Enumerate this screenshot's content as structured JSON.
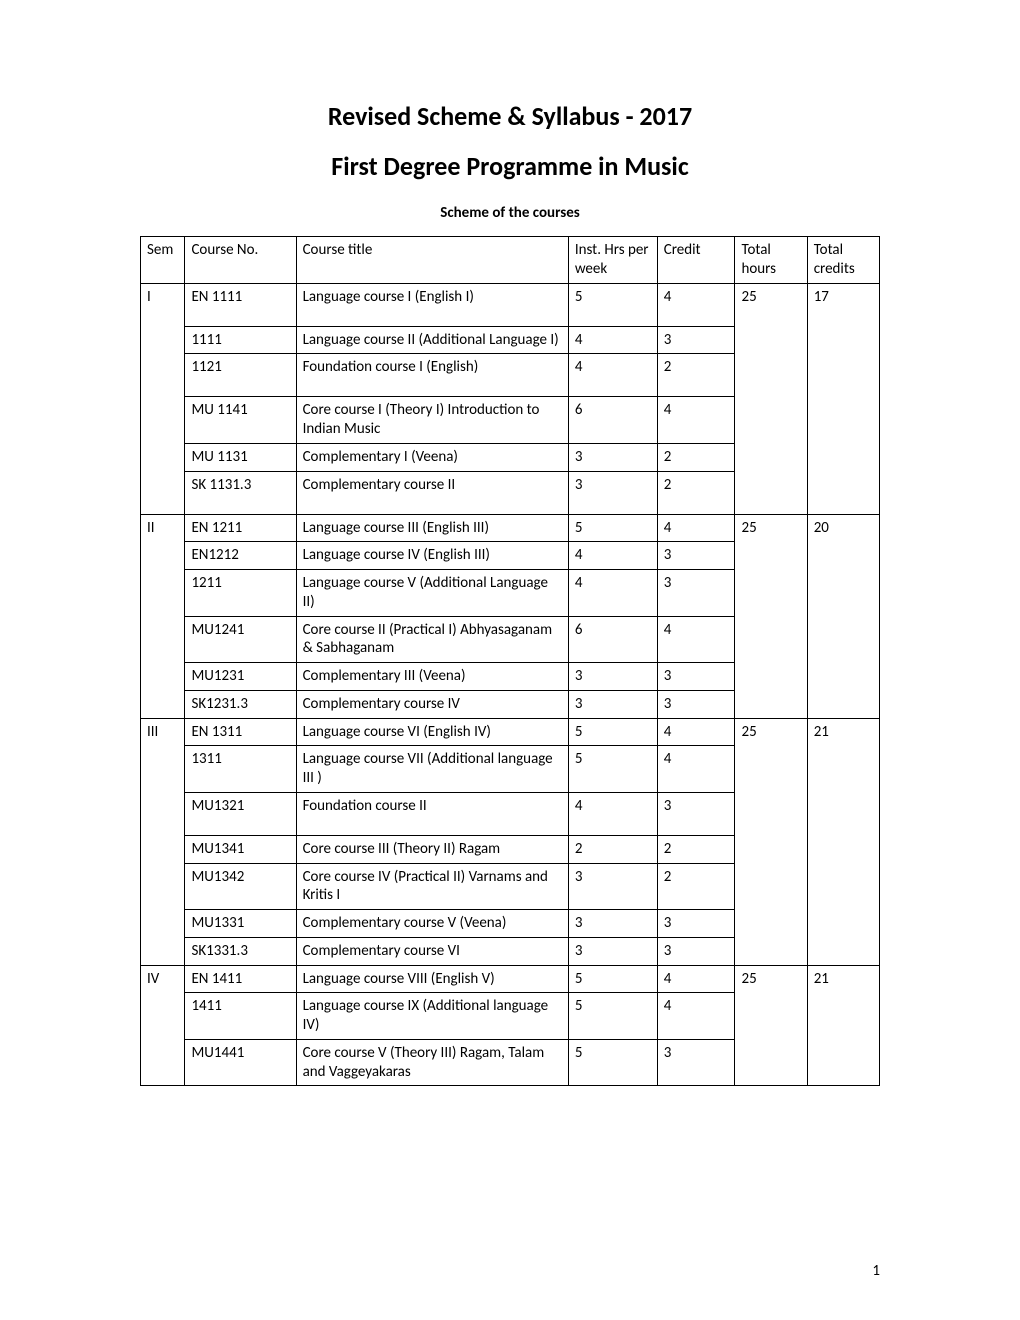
{
  "title": "Revised Scheme & Syllabus - 2017",
  "subtitle": "First Degree Programme in Music",
  "scheme_label": "Scheme of the courses",
  "page_number": "1",
  "columns": {
    "sem": "Sem",
    "course_no": "Course No.",
    "course_title": "Course title",
    "inst_hrs": "Inst. Hrs per week",
    "credit": "Credit",
    "total_hours": "Total hours",
    "total_credits": "Total credits"
  },
  "semesters": [
    {
      "sem": "I",
      "total_hours": "25",
      "total_credits": "17",
      "rows": [
        {
          "no": "EN 1111",
          "title": "Language course I (English I)",
          "hrs": "5",
          "credit": "4",
          "tall": true
        },
        {
          "no": "1111",
          "title": "Language course II (Additional Language I)",
          "hrs": "4",
          "credit": "3"
        },
        {
          "no": "1121",
          "title": "Foundation course I (English)",
          "hrs": "4",
          "credit": "2",
          "tall": true
        },
        {
          "no": "MU 1141",
          "title": "Core course I  (Theory I) Introduction to Indian Music",
          "hrs": "6",
          "credit": "4"
        },
        {
          "no": "MU 1131",
          "title": "Complementary I (Veena)",
          "hrs": "3",
          "credit": "2"
        },
        {
          "no": "SK 1131.3",
          "title": "Complementary course II",
          "hrs": "3",
          "credit": "2",
          "tall": true
        }
      ]
    },
    {
      "sem": "II",
      "total_hours": "25",
      "total_credits": "20",
      "rows": [
        {
          "no": "EN 1211",
          "title": "Language course III (English III)",
          "hrs": "5",
          "credit": "4"
        },
        {
          "no": "EN1212",
          "title": "Language course IV (English III)",
          "hrs": "4",
          "credit": "3"
        },
        {
          "no": "1211",
          "title": "Language course V (Additional Language II)",
          "hrs": "4",
          "credit": "3"
        },
        {
          "no": "MU1241",
          "title": "Core course II (Practical I) Abhyasaganam & Sabhaganam",
          "hrs": "6",
          "credit": "4"
        },
        {
          "no": "MU1231",
          "title": "Complementary III (Veena)",
          "hrs": "3",
          "credit": "3"
        },
        {
          "no": "SK1231.3",
          "title": "Complementary course IV",
          "hrs": "3",
          "credit": "3"
        }
      ]
    },
    {
      "sem": "III",
      "total_hours": "25",
      "total_credits": "21",
      "rows": [
        {
          "no": "EN 1311",
          "title": "Language course VI (English IV)",
          "hrs": "5",
          "credit": "4"
        },
        {
          "no": "1311",
          "title": "Language course VII (Additional language III )",
          "hrs": "5",
          "credit": "4"
        },
        {
          "no": "MU1321",
          "title": "Foundation course II",
          "hrs": "4",
          "credit": "3",
          "tall": true
        },
        {
          "no": "MU1341",
          "title": "Core course III  (Theory II) Ragam",
          "hrs": "2",
          "credit": "2"
        },
        {
          "no": "MU1342",
          "title": "Core course IV (Practical II) Varnams and Kritis I",
          "hrs": "3",
          "credit": "2"
        },
        {
          "no": "MU1331",
          "title": "Complementary course V (Veena)",
          "hrs": "3",
          "credit": "3"
        },
        {
          "no": "SK1331.3",
          "title": "Complementary course VI",
          "hrs": "3",
          "credit": "3"
        }
      ]
    },
    {
      "sem": "IV",
      "total_hours": "25",
      "total_credits": "21",
      "rows": [
        {
          "no": "EN 1411",
          "title": "Language course VIII (English V)",
          "hrs": "5",
          "credit": "4"
        },
        {
          "no": "1411",
          "title": "Language course IX (Additional language IV)",
          "hrs": "5",
          "credit": "4"
        },
        {
          "no": "MU1441",
          "title": "Core course V (Theory III) Ragam, Talam and Vaggeyakaras",
          "hrs": "5",
          "credit": "3"
        }
      ]
    }
  ]
}
